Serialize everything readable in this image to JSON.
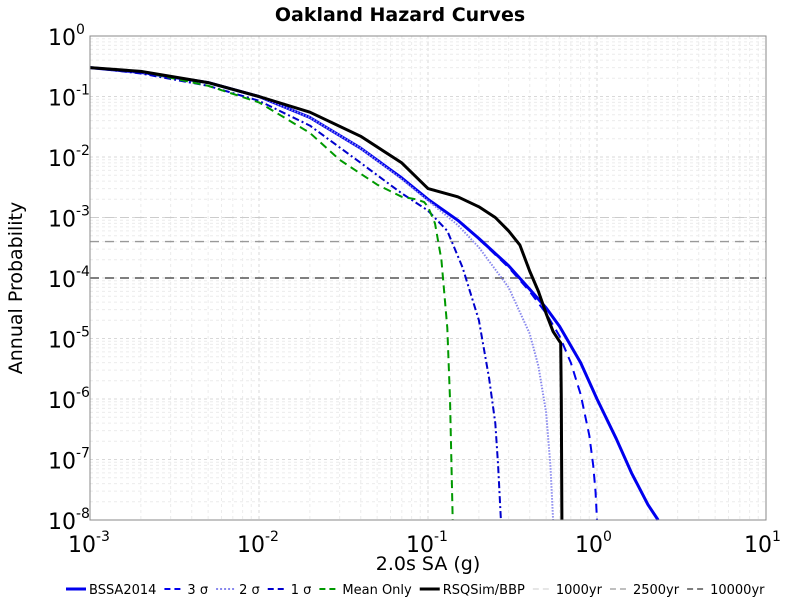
{
  "chart_data": {
    "type": "line",
    "title": "Oakland Hazard Curves",
    "xlabel": "2.0s SA (g)",
    "ylabel": "Annual Probability",
    "xscale": "log",
    "yscale": "log",
    "xlim": [
      0.001,
      10
    ],
    "ylim": [
      1e-08,
      1
    ],
    "grid": true,
    "legend_position": "bottom",
    "x_ticks": [
      {
        "base": "10",
        "exp": "-3"
      },
      {
        "base": "10",
        "exp": "-2"
      },
      {
        "base": "10",
        "exp": "-1"
      },
      {
        "base": "10",
        "exp": "0"
      },
      {
        "base": "10",
        "exp": "1"
      }
    ],
    "y_ticks": [
      {
        "base": "10",
        "exp": "0"
      },
      {
        "base": "10",
        "exp": "-1"
      },
      {
        "base": "10",
        "exp": "-2"
      },
      {
        "base": "10",
        "exp": "-3"
      },
      {
        "base": "10",
        "exp": "-4"
      },
      {
        "base": "10",
        "exp": "-5"
      },
      {
        "base": "10",
        "exp": "-6"
      },
      {
        "base": "10",
        "exp": "-7"
      },
      {
        "base": "10",
        "exp": "-8"
      }
    ],
    "series": [
      {
        "name": "BSSA2014",
        "color": "#0000ee",
        "dash": "solid",
        "width": 3,
        "x": [
          0.001,
          0.002,
          0.005,
          0.01,
          0.02,
          0.04,
          0.07,
          0.1,
          0.15,
          0.2,
          0.3,
          0.4,
          0.5,
          0.6,
          0.8,
          1.0,
          1.3,
          1.6,
          2.0,
          2.3
        ],
        "y": [
          0.3,
          0.25,
          0.17,
          0.1,
          0.045,
          0.014,
          0.0045,
          0.002,
          0.0009,
          0.00045,
          0.00016,
          6.5e-05,
          3.2e-05,
          1.6e-05,
          4e-06,
          1e-06,
          2.2e-07,
          6e-08,
          1.8e-08,
          1e-08
        ]
      },
      {
        "name": "3 σ",
        "color": "#0000ee",
        "dash": "dashed",
        "width": 2,
        "x": [
          0.001,
          0.002,
          0.005,
          0.01,
          0.02,
          0.04,
          0.07,
          0.1,
          0.15,
          0.2,
          0.3,
          0.4,
          0.5,
          0.6,
          0.7,
          0.8,
          0.9,
          0.95,
          0.98,
          1.0
        ],
        "y": [
          0.3,
          0.25,
          0.17,
          0.1,
          0.045,
          0.014,
          0.0045,
          0.002,
          0.0009,
          0.00044,
          0.00015,
          6e-05,
          2.6e-05,
          1.1e-05,
          4e-06,
          1.2e-06,
          2.5e-07,
          8e-08,
          3e-08,
          1e-08
        ]
      },
      {
        "name": "2 σ",
        "color": "#8888ee",
        "dash": "dotted",
        "width": 2,
        "x": [
          0.001,
          0.002,
          0.005,
          0.01,
          0.02,
          0.04,
          0.07,
          0.1,
          0.15,
          0.2,
          0.3,
          0.4,
          0.45,
          0.5,
          0.53,
          0.55
        ],
        "y": [
          0.3,
          0.25,
          0.17,
          0.1,
          0.045,
          0.014,
          0.0043,
          0.0019,
          0.00075,
          0.00032,
          7e-05,
          1.2e-05,
          3.5e-06,
          6e-07,
          8e-08,
          1e-08
        ]
      },
      {
        "name": "1 σ",
        "color": "#0000cc",
        "dash": "dashdot",
        "width": 2,
        "x": [
          0.001,
          0.002,
          0.005,
          0.01,
          0.02,
          0.04,
          0.07,
          0.1,
          0.13,
          0.16,
          0.2,
          0.23,
          0.25,
          0.26,
          0.27
        ],
        "y": [
          0.3,
          0.24,
          0.15,
          0.085,
          0.033,
          0.008,
          0.0025,
          0.0013,
          0.0006,
          0.00015,
          2e-05,
          2.2e-06,
          4e-07,
          8e-08,
          1e-08
        ]
      },
      {
        "name": "Mean Only",
        "color": "#009900",
        "dash": "longdash",
        "width": 2,
        "x": [
          0.001,
          0.002,
          0.005,
          0.01,
          0.02,
          0.03,
          0.05,
          0.07,
          0.085,
          0.095,
          0.1,
          0.11,
          0.12,
          0.13,
          0.135,
          0.14
        ],
        "y": [
          0.3,
          0.26,
          0.15,
          0.08,
          0.025,
          0.009,
          0.0035,
          0.0022,
          0.002,
          0.0018,
          0.0015,
          0.0008,
          0.0002,
          1.5e-05,
          1e-06,
          1e-08
        ]
      },
      {
        "name": "RSQSim/BBP",
        "color": "#000000",
        "dash": "solid",
        "width": 3,
        "x": [
          0.001,
          0.002,
          0.005,
          0.01,
          0.02,
          0.04,
          0.07,
          0.1,
          0.15,
          0.2,
          0.25,
          0.3,
          0.35,
          0.4,
          0.45,
          0.5,
          0.55,
          0.6,
          0.61,
          0.615,
          0.62
        ],
        "y": [
          0.3,
          0.26,
          0.17,
          0.1,
          0.055,
          0.022,
          0.008,
          0.003,
          0.0022,
          0.0015,
          0.001,
          0.0006,
          0.00035,
          0.00013,
          6e-05,
          2.6e-05,
          1.3e-05,
          9e-06,
          8.5e-06,
          1e-06,
          1e-08
        ]
      }
    ],
    "reference_lines": [
      {
        "name": "1000yr",
        "y": 0.001,
        "color": "#cccccc",
        "width": 1
      },
      {
        "name": "2500yr",
        "y": 0.0004,
        "color": "#999999",
        "width": 1.3
      },
      {
        "name": "10000yr",
        "y": 0.0001,
        "color": "#555555",
        "width": 1.6
      }
    ]
  }
}
